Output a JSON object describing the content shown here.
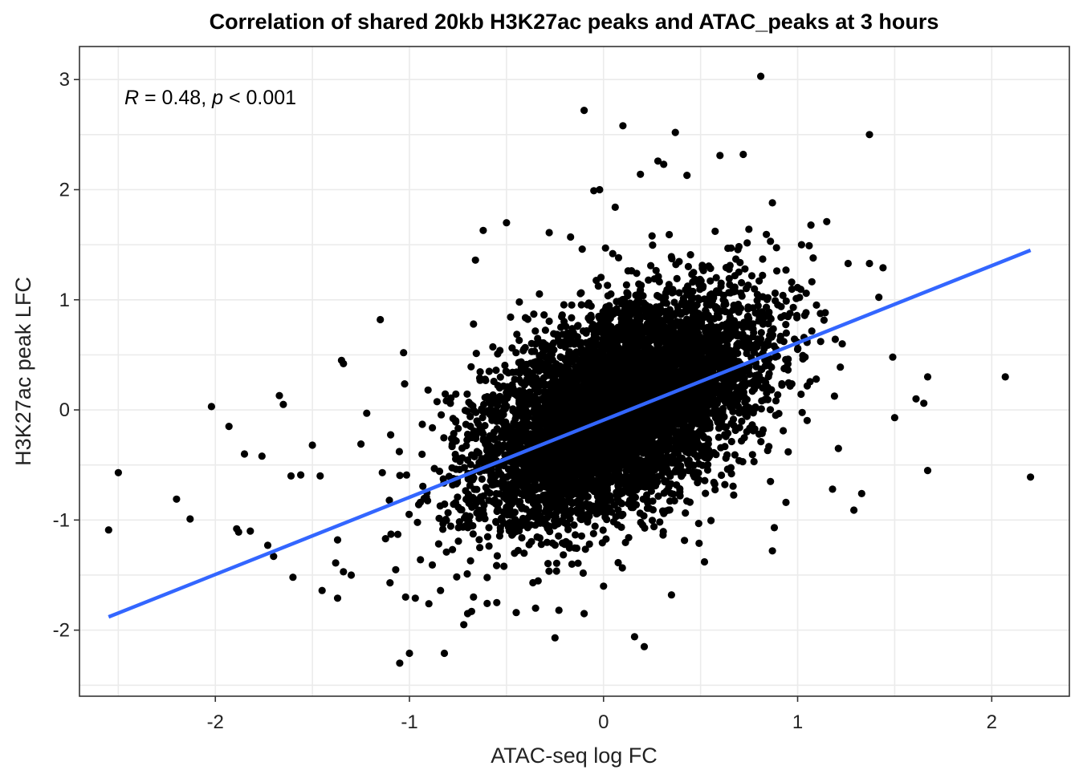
{
  "chart_data": {
    "type": "scatter",
    "title": "Correlation of shared 20kb H3K27ac peaks and ATAC_peaks at 3 hours",
    "xlabel": "ATAC-seq log FC",
    "ylabel": "H3K27ac peak LFC",
    "xlim": [
      -2.7,
      2.4
    ],
    "ylim": [
      -2.6,
      3.3
    ],
    "x_ticks": [
      -2,
      -1,
      0,
      1,
      2
    ],
    "y_ticks": [
      -2,
      -1,
      0,
      1,
      2,
      3
    ],
    "x_tick_labels": [
      "-2",
      "-1",
      "0",
      "1",
      "2"
    ],
    "y_tick_labels": [
      "-2",
      "-1",
      "0",
      "1",
      "2",
      "3"
    ],
    "grid": true,
    "legend": "none",
    "annotation": {
      "r_symbol": "R",
      "r_text": " = 0.48, ",
      "p_symbol": "p",
      "p_text": " < 0.001"
    },
    "regression_line": {
      "x": [
        -2.55,
        2.2
      ],
      "y": [
        -1.88,
        1.45
      ],
      "color": "#3366FF"
    },
    "point_color": "#000000",
    "outlier_points": {
      "x": [
        0.81,
        -0.1,
        0.1,
        0.37,
        1.37,
        0.6,
        0.72,
        0.28,
        0.31,
        0.19,
        0.43,
        -0.05,
        0.87,
        1.15,
        0.06,
        -0.62,
        -0.5,
        -0.66,
        -0.28,
        -0.17,
        -0.11,
        0.01,
        0.25,
        0.82,
        0.94,
        1.02,
        1.26,
        1.44,
        1.37,
        1.08,
        -0.67,
        -1.15,
        -1.35,
        -1.34,
        -1.03,
        -0.37,
        0.72,
        1.23,
        1.49,
        1.67,
        2.07,
        1.61,
        1.65,
        1.5,
        1.21,
        2.2,
        1.67,
        1.33,
        1.29,
        1.18,
        0.87,
        0.88,
        -2.55,
        -2.5,
        -2.2,
        -2.13,
        -2.02,
        -1.93,
        -1.85,
        -1.76,
        -1.67,
        -1.65,
        -1.61,
        -1.56,
        -1.5,
        -1.46,
        -1.37,
        -1.34,
        -1.37,
        -1.3,
        -1.25,
        -1.22,
        -1.14,
        -1.1,
        -1.06,
        -1.02,
        -1.0,
        -1.05,
        -0.97,
        -0.9,
        -0.84,
        -0.82,
        -0.72,
        -0.68,
        -0.7,
        -0.67,
        -0.55,
        -0.45,
        -0.35,
        -0.25,
        -0.23,
        -0.1,
        0.16,
        0.21,
        -1.89,
        -1.88,
        -1.82,
        -1.73,
        -1.7,
        -1.6,
        -1.45,
        -1.38,
        -0.02,
        0.86,
        0.94,
        0.35,
        0.52
      ],
      "y": [
        3.03,
        2.72,
        2.58,
        2.52,
        2.5,
        2.31,
        2.32,
        2.26,
        2.23,
        2.14,
        2.13,
        1.99,
        1.88,
        1.71,
        1.84,
        1.63,
        1.7,
        1.36,
        1.61,
        1.57,
        1.46,
        1.47,
        1.58,
        1.37,
        1.27,
        1.5,
        1.33,
        1.29,
        1.33,
        1.38,
        0.78,
        0.82,
        0.45,
        0.42,
        0.52,
        0.53,
        0.65,
        0.6,
        0.48,
        0.3,
        0.3,
        0.1,
        0.06,
        -0.07,
        -0.35,
        -0.61,
        -0.55,
        -0.76,
        -0.91,
        -0.72,
        -1.28,
        -1.07,
        -1.09,
        -0.57,
        -0.81,
        -0.99,
        0.03,
        -0.15,
        -0.4,
        -0.42,
        0.13,
        0.05,
        -0.6,
        -0.59,
        -0.32,
        -0.6,
        -1.18,
        -1.47,
        -1.71,
        -1.5,
        -0.31,
        -0.03,
        -0.57,
        -1.57,
        -1.13,
        -1.7,
        -2.21,
        -2.3,
        -1.71,
        -1.76,
        -1.64,
        -2.21,
        -1.95,
        -1.83,
        -1.85,
        -1.7,
        -1.75,
        -1.84,
        -1.8,
        -2.07,
        -1.82,
        -1.85,
        -2.06,
        -2.15,
        -1.08,
        -1.11,
        -1.1,
        -1.23,
        -1.33,
        -1.52,
        -1.64,
        -1.39,
        2.0,
        -0.65,
        -0.84,
        -1.68,
        -1.38
      ]
    },
    "cloud_points": {
      "n": 6500,
      "x_mean": 0.08,
      "x_sd": 0.36,
      "slope": 0.7,
      "intercept": -0.05,
      "residual_sd": 0.44
    }
  }
}
